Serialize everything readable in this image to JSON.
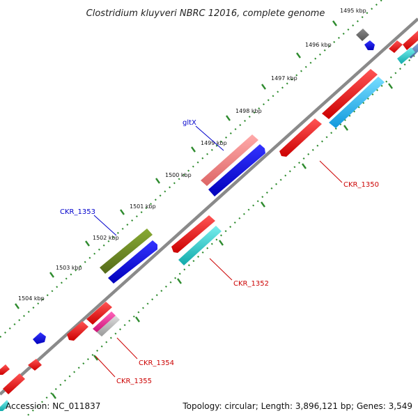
{
  "title": "Clostridium kluyveri NBRC 12016, complete genome",
  "footer": {
    "accession": "Accession: NC_011837",
    "summary": "Topology: circular; Length: 3,896,121 bp; Genes: 3,549"
  },
  "ticks": [
    "1495 kbp",
    "1496 kbp",
    "1497 kbp",
    "1498 kbp",
    "1499 kbp",
    "1500 kbp",
    "1501 kbp",
    "1502 kbp",
    "1503 kbp",
    "1504 kbp"
  ],
  "gene_labels": {
    "gltX": "gltX",
    "ckr1353": "CKR_1353",
    "ckr1350": "CKR_1350",
    "ckr1352": "CKR_1352",
    "ckr1354": "CKR_1354",
    "ckr1355": "CKR_1355"
  },
  "colors": {
    "backbone": "#8a8a8a",
    "tick": "#2e8b2e",
    "forward_red": "#ee0000",
    "reverse_blue": "#0000ee",
    "cyan": "#22cccc",
    "light_blue": "#33bbee",
    "salmon": "#ee8888",
    "olive": "#6b8e23",
    "magenta": "#ee3399",
    "grey": "#777777",
    "label_blue": "#0000cc",
    "label_red": "#cc0000"
  }
}
